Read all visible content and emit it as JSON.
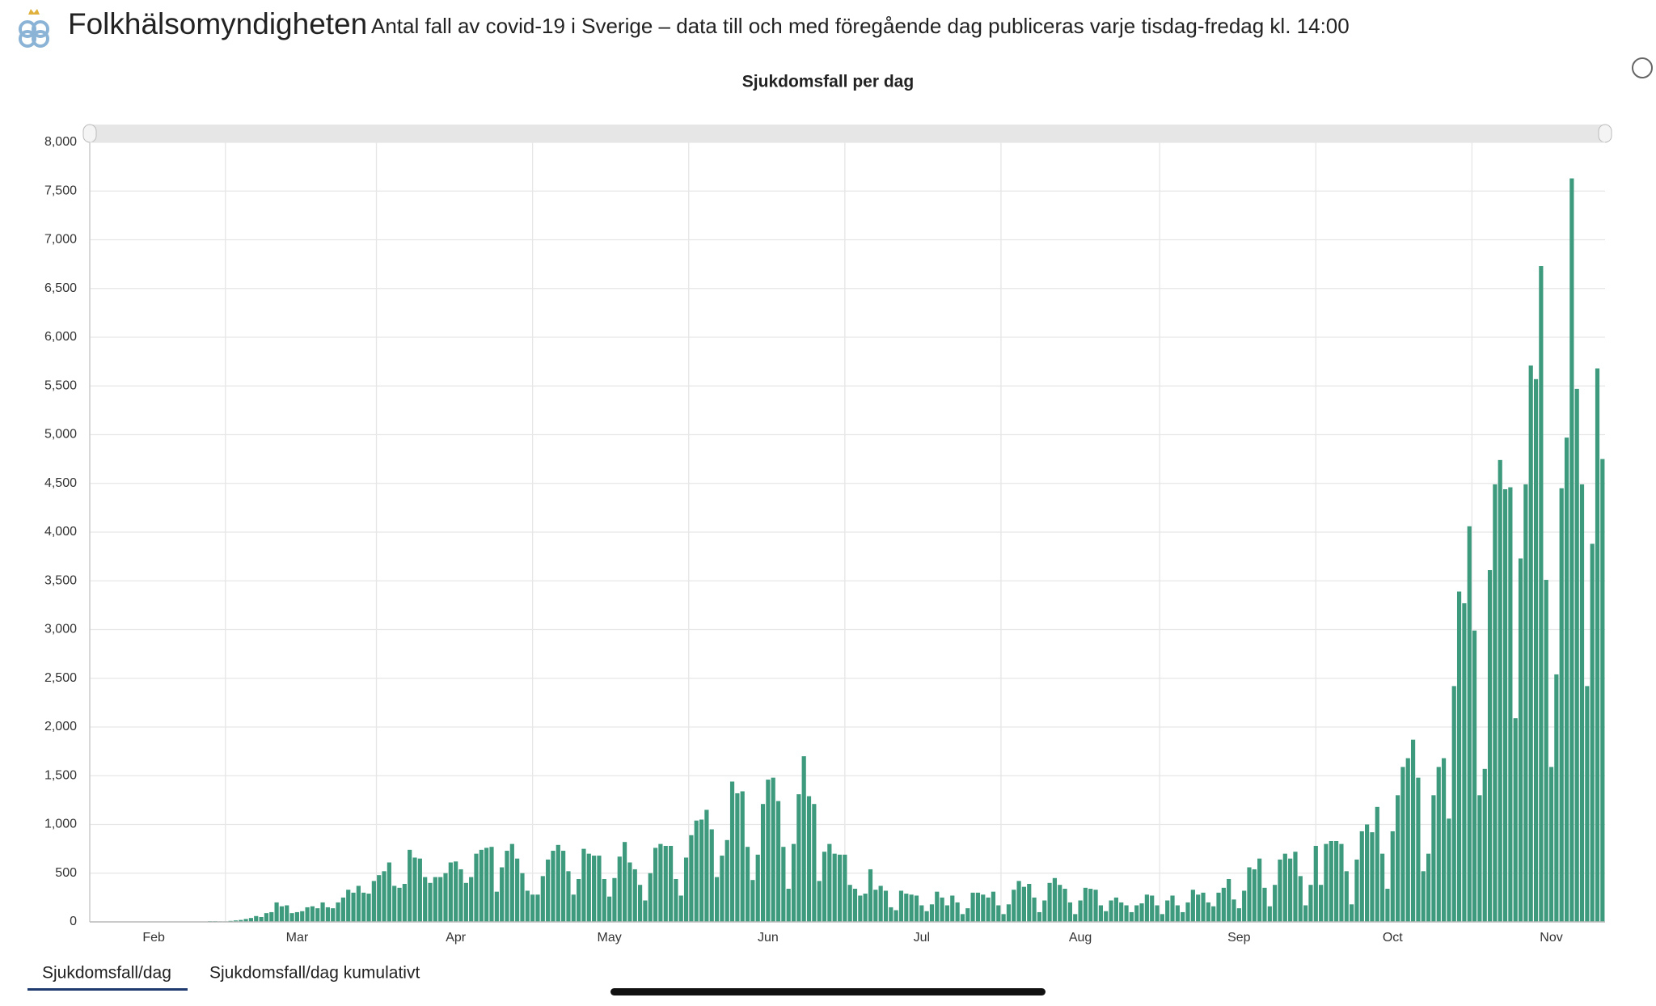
{
  "header": {
    "title": "Folkhälsomyndigheten",
    "subtitle": "Antal fall av covid-19 i Sverige – data till och med föregående dag publiceras varje tisdag-fredag kl. 14:00"
  },
  "tabs": [
    "Sjukdomsfall/dag",
    "Sjukdomsfall/dag kumulativt"
  ],
  "chart_data": {
    "type": "bar",
    "title": "Sjukdomsfall per dag",
    "color": "#3d9a7d",
    "grid": true,
    "categories": [
      null,
      null,
      null,
      null,
      null,
      null,
      null,
      null,
      null,
      null,
      null,
      null,
      "Feb",
      null,
      null,
      null,
      null,
      null,
      null,
      null,
      null,
      null,
      null,
      null,
      null,
      null,
      null,
      null,
      null,
      null,
      null,
      null,
      null,
      null,
      null,
      null,
      null,
      null,
      null,
      null,
      "Mar",
      null,
      null,
      null,
      null,
      null,
      null,
      null,
      null,
      null,
      null,
      null,
      null,
      null,
      null,
      null,
      null,
      null,
      null,
      null,
      null,
      null,
      null,
      null,
      null,
      null,
      null,
      null,
      null,
      null,
      null,
      "Apr",
      null,
      null,
      null,
      null,
      null,
      null,
      null,
      null,
      null,
      null,
      null,
      null,
      null,
      null,
      null,
      null,
      null,
      null,
      null,
      null,
      null,
      null,
      null,
      null,
      null,
      null,
      null,
      null,
      null,
      "May",
      null,
      null,
      null,
      null,
      null,
      null,
      null,
      null,
      null,
      null,
      null,
      null,
      null,
      null,
      null,
      null,
      null,
      null,
      null,
      null,
      null,
      null,
      null,
      null,
      null,
      null,
      null,
      null,
      null,
      null,
      "Jun",
      null,
      null,
      null,
      null,
      null,
      null,
      null,
      null,
      null,
      null,
      null,
      null,
      null,
      null,
      null,
      null,
      null,
      null,
      null,
      null,
      null,
      null,
      null,
      null,
      null,
      null,
      null,
      null,
      null,
      "Jul",
      null,
      null,
      null,
      null,
      null,
      null,
      null,
      null,
      null,
      null,
      null,
      null,
      null,
      null,
      null,
      null,
      null,
      null,
      null,
      null,
      null,
      null,
      null,
      null,
      null,
      null,
      null,
      null,
      null,
      null,
      "Aug",
      null,
      null,
      null,
      null,
      null,
      null,
      null,
      null,
      null,
      null,
      null,
      null,
      null,
      null,
      null,
      null,
      null,
      null,
      null,
      null,
      null,
      null,
      null,
      null,
      null,
      null,
      null,
      null,
      null,
      null,
      "Sep",
      null,
      null,
      null,
      null,
      null,
      null,
      null,
      null,
      null,
      null,
      null,
      null,
      null,
      null,
      null,
      null,
      null,
      null,
      null,
      null,
      null,
      null,
      null,
      null,
      null,
      null,
      null,
      null,
      null,
      "Oct",
      null,
      null,
      null,
      null,
      null,
      null,
      null,
      null,
      null,
      null,
      null,
      null,
      null,
      null,
      null,
      null,
      null,
      null,
      null,
      null,
      null,
      null,
      null,
      null,
      null,
      null,
      null,
      null,
      null,
      null,
      "Nov",
      null,
      null,
      null,
      null,
      null,
      null,
      null,
      null,
      null,
      null
    ],
    "values": [
      0,
      0,
      0,
      0,
      0,
      0,
      0,
      0,
      0,
      0,
      0,
      0,
      0,
      0,
      0,
      0,
      0,
      0,
      0,
      0,
      0,
      1,
      2,
      7,
      7,
      5,
      5,
      10,
      15,
      20,
      30,
      40,
      60,
      50,
      90,
      100,
      200,
      160,
      170,
      90,
      100,
      110,
      150,
      160,
      140,
      200,
      150,
      140,
      200,
      250,
      330,
      300,
      370,
      300,
      290,
      420,
      480,
      520,
      610,
      370,
      350,
      390,
      740,
      660,
      650,
      460,
      400,
      460,
      460,
      500,
      610,
      620,
      540,
      400,
      460,
      700,
      740,
      760,
      770,
      310,
      560,
      730,
      800,
      650,
      500,
      320,
      280,
      280,
      470,
      640,
      730,
      790,
      730,
      520,
      280,
      440,
      750,
      700,
      680,
      680,
      440,
      260,
      450,
      670,
      820,
      610,
      540,
      380,
      220,
      500,
      760,
      800,
      780,
      780,
      440,
      270,
      660,
      890,
      1040,
      1050,
      1150,
      950,
      460,
      680,
      840,
      1440,
      1320,
      1340,
      770,
      430,
      690,
      1210,
      1460,
      1480,
      1240,
      770,
      340,
      800,
      1310,
      1700,
      1290,
      1210,
      420,
      720,
      800,
      700,
      690,
      690,
      380,
      340,
      270,
      290,
      540,
      330,
      370,
      320,
      150,
      120,
      320,
      290,
      280,
      270,
      170,
      110,
      180,
      310,
      250,
      170,
      270,
      200,
      80,
      140,
      300,
      300,
      280,
      250,
      310,
      170,
      80,
      180,
      330,
      420,
      360,
      390,
      250,
      100,
      220,
      400,
      450,
      380,
      340,
      200,
      80,
      220,
      350,
      340,
      330,
      170,
      110,
      220,
      250,
      200,
      170,
      100,
      170,
      190,
      280,
      270,
      170,
      80,
      220,
      270,
      170,
      100,
      200,
      330,
      280,
      300,
      200,
      160,
      300,
      350,
      440,
      230,
      140,
      320,
      560,
      540,
      650,
      350,
      160,
      380,
      640,
      700,
      650,
      720,
      470,
      170,
      380,
      780,
      380,
      800,
      830,
      830,
      800,
      520,
      180,
      640,
      930,
      1000,
      920,
      1180,
      700,
      340,
      930,
      1300,
      1590,
      1680,
      1870,
      1480,
      520,
      700,
      1300,
      1590,
      1680,
      1060,
      2420,
      3390,
      3270,
      4060,
      2990,
      1300,
      1570,
      3610,
      4490,
      4740,
      4440,
      4460,
      2090,
      3730,
      4490,
      5710,
      5570,
      6730,
      3510,
      1590,
      2540,
      4450,
      4970,
      7630,
      5470,
      4490,
      2420,
      3880,
      5680,
      4750
    ],
    "ylim": [
      0,
      8000
    ],
    "yticks": [
      0,
      500,
      {
        "value": 1000,
        "label": "1,000"
      },
      {
        "value": 1500,
        "label": "1,500"
      },
      {
        "value": 2000,
        "label": "2,000"
      },
      {
        "value": 2500,
        "label": "2,500"
      },
      {
        "value": 3000,
        "label": "3,000"
      },
      {
        "value": 3500,
        "label": "3,500"
      },
      {
        "value": 4000,
        "label": "4,000"
      },
      {
        "value": 4500,
        "label": "4,500"
      },
      {
        "value": 5000,
        "label": "5,000"
      },
      {
        "value": 5500,
        "label": "5,500"
      },
      {
        "value": 6000,
        "label": "6,000"
      },
      {
        "value": 6500,
        "label": "6,500"
      },
      {
        "value": 7000,
        "label": "7,000"
      },
      {
        "value": 7500,
        "label": "7,500"
      },
      {
        "value": 8000,
        "label": "8,000"
      }
    ]
  }
}
